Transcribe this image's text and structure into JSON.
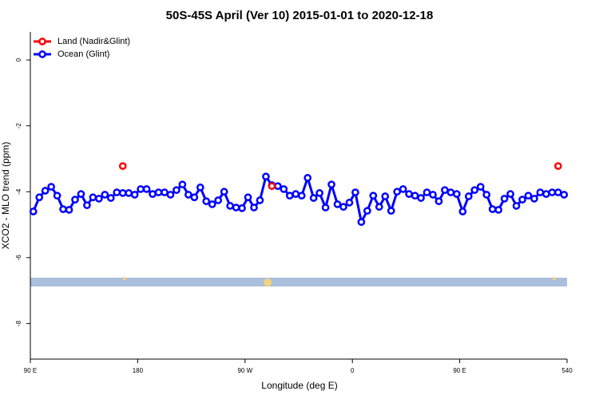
{
  "chart_data": {
    "type": "line",
    "title": "50S-45S April (Ver 10)   2015-01-01 to 2020-12-18",
    "x_label": "Longitude (deg E)",
    "y_label": "XCO2 - MLO trend (ppm)",
    "x": [
      92.5,
      97.5,
      102.5,
      107.5,
      112.5,
      117.5,
      122.5,
      127.5,
      132.5,
      137.5,
      142.5,
      147.5,
      152.5,
      157.5,
      162.5,
      167.5,
      172.5,
      177.5,
      182.5,
      187.5,
      192.5,
      197.5,
      202.5,
      207.5,
      212.5,
      217.5,
      222.5,
      227.5,
      232.5,
      237.5,
      242.5,
      247.5,
      252.5,
      257.5,
      262.5,
      267.5,
      272.5,
      277.5,
      282.5,
      287.5,
      292.5,
      297.5,
      302.5,
      307.5,
      312.5,
      317.5,
      322.5,
      327.5,
      332.5,
      337.5,
      342.5,
      347.5,
      352.5,
      357.5,
      362.5,
      367.5,
      372.5,
      377.5,
      382.5,
      387.5,
      392.5,
      397.5,
      402.5,
      407.5,
      412.5,
      417.5,
      422.5,
      427.5,
      432.5,
      437.5,
      442.5,
      447.5,
      452.5,
      457.5,
      462.5,
      467.5,
      472.5,
      477.5,
      482.5,
      487.5,
      492.5,
      497.5,
      502.5,
      507.5,
      512.5,
      517.5,
      522.5,
      527.5,
      532.5,
      537.5
    ],
    "series": [
      {
        "name": "Land (Nadir&Glint)",
        "color": "#ff0000",
        "values": [
          null,
          null,
          null,
          null,
          null,
          null,
          null,
          null,
          null,
          null,
          null,
          null,
          null,
          null,
          null,
          -3.22,
          null,
          null,
          null,
          null,
          null,
          null,
          null,
          null,
          null,
          null,
          null,
          null,
          null,
          null,
          null,
          null,
          null,
          null,
          null,
          null,
          null,
          null,
          null,
          null,
          -3.83,
          null,
          null,
          null,
          null,
          null,
          null,
          null,
          null,
          null,
          null,
          null,
          null,
          null,
          null,
          null,
          null,
          null,
          null,
          null,
          null,
          null,
          null,
          null,
          null,
          null,
          null,
          null,
          null,
          null,
          null,
          null,
          null,
          null,
          null,
          null,
          null,
          null,
          null,
          null,
          null,
          null,
          null,
          null,
          null,
          null,
          null,
          null,
          -3.22,
          null
        ]
      },
      {
        "name": "Ocean (Glint)",
        "color": "#0000ff",
        "values": [
          -4.6,
          -4.17,
          -3.97,
          -3.85,
          -4.12,
          -4.53,
          -4.55,
          -4.24,
          -4.07,
          -4.41,
          -4.17,
          -4.21,
          -4.09,
          -4.19,
          -4.02,
          -4.04,
          -4.04,
          -4.09,
          -3.92,
          -3.92,
          -4.07,
          -4.02,
          -4.02,
          -4.09,
          -3.95,
          -3.78,
          -4.09,
          -4.17,
          -3.87,
          -4.29,
          -4.38,
          -4.26,
          -4.0,
          -4.43,
          -4.48,
          -4.5,
          -4.17,
          -4.48,
          -4.26,
          -3.54,
          -3.8,
          -3.83,
          -3.92,
          -4.12,
          -4.07,
          -4.12,
          -3.58,
          -4.19,
          -4.04,
          -4.48,
          -3.78,
          -4.38,
          -4.46,
          -4.33,
          -4.02,
          -4.92,
          -4.58,
          -4.12,
          -4.46,
          -4.14,
          -4.58,
          -4.0,
          -3.92,
          -4.07,
          -4.12,
          -4.19,
          -4.02,
          -4.09,
          -4.29,
          -3.95,
          -4.02,
          -4.07,
          -4.6,
          -4.14,
          -3.95,
          -3.85,
          -4.09,
          -4.53,
          -4.55,
          -4.21,
          -4.07,
          -4.43,
          -4.24,
          -4.12,
          -4.21,
          -4.02,
          -4.07,
          -4.02,
          -4.02,
          -4.09
        ]
      }
    ],
    "xlim": [
      90,
      540
    ],
    "xticks": [
      {
        "value": 90,
        "label": "90 E"
      },
      180,
      {
        "value": 270,
        "label": "90 W"
      },
      {
        "value": 360,
        "label": "0"
      },
      {
        "value": 450,
        "label": "90 E"
      },
      540
    ],
    "ylim": [
      -9.08,
      0.85
    ],
    "yticks": [
      0,
      -2,
      -4,
      -6,
      -8
    ],
    "legend": "top-left"
  }
}
